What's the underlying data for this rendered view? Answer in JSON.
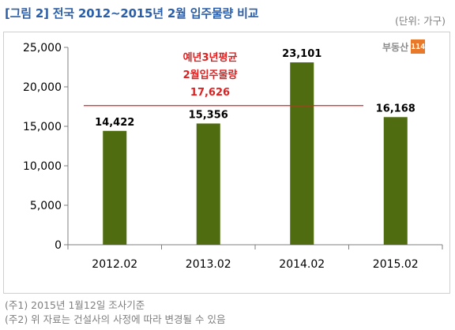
{
  "title": "[그림 2] 전국 2012~2015년 2월 입주물량 비교",
  "unit_label": "(단위: 가구)",
  "logo": {
    "text": "부동산",
    "mark": "114"
  },
  "chart_data": {
    "type": "bar",
    "categories": [
      "2012.02",
      "2013.02",
      "2014.02",
      "2015.02"
    ],
    "values": [
      14422,
      15356,
      23101,
      16168
    ],
    "value_labels": [
      "14,422",
      "15,356",
      "23,101",
      "16,168"
    ],
    "yticks": [
      0,
      5000,
      10000,
      15000,
      20000,
      25000
    ],
    "ytick_labels": [
      "0",
      "5,000",
      "10,000",
      "15,000",
      "20,000",
      "25,000"
    ],
    "ylim": [
      0,
      25000
    ],
    "bar_color": "#4f6d10",
    "reference_line": {
      "value": 17626,
      "color": "#e02020",
      "label_lines": [
        "예년3년평균",
        "2월입주물량",
        "17,626"
      ]
    },
    "grid": false
  },
  "notes": [
    "(주1) 2015년 1월12일 조사기준",
    "(주2) 위 자료는 건설사의 사정에 따라 변경될 수 있음"
  ]
}
